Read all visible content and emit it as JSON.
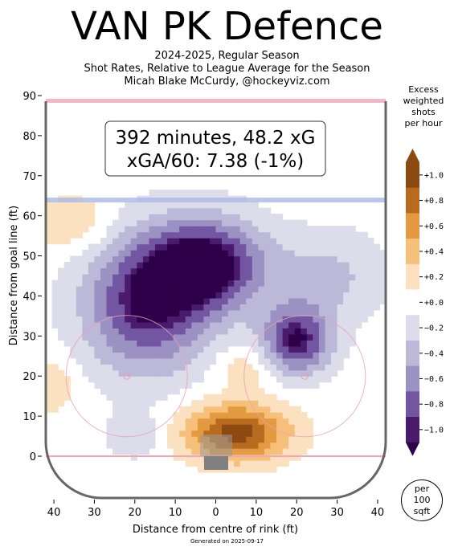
{
  "title": "VAN PK Defence",
  "subtitle": [
    "2024-2025, Regular Season",
    "Shot Rates, Relative to League Average for the Season",
    "Micah Blake McCurdy, @hockeyviz.com"
  ],
  "annotation": [
    "392 minutes, 48.2 xG",
    "xGA/60: 7.38 (-1%)"
  ],
  "generated": "Generated on 2025-09-17",
  "colorbar": {
    "title": [
      "Excess",
      "weighted",
      "shots",
      "per hour"
    ],
    "ticks": [
      "+1.0",
      "+0.8",
      "+0.6",
      "+0.4",
      "+0.2",
      "+0.0",
      "−0.2",
      "−0.4",
      "−0.6",
      "−0.8",
      "−1.0"
    ],
    "colors": [
      "#8c4a10",
      "#b86a1f",
      "#e39a40",
      "#f6c07a",
      "#fbe1c0",
      "#ffffff",
      "#dcdcea",
      "#bcb9d8",
      "#9b91c3",
      "#7356a2",
      "#4a1a6d",
      "#2d0049"
    ]
  },
  "unit_badge": [
    "per",
    "100",
    "sqft"
  ],
  "chart_data": {
    "type": "heatmap",
    "xlabel": "Distance from centre of rink (ft)",
    "ylabel": "Distance from goal line (ft)",
    "xlim": [
      -42,
      42
    ],
    "ylim": [
      -10,
      90
    ],
    "xticks": [
      -40,
      -30,
      -20,
      -10,
      0,
      10,
      20,
      30,
      40
    ],
    "xtick_labels": [
      "40",
      "30",
      "20",
      "10",
      "0",
      "10",
      "20",
      "30",
      "40"
    ],
    "yticks": [
      0,
      10,
      20,
      30,
      40,
      50,
      60,
      70,
      80,
      90
    ],
    "blobs": [
      {
        "x": -17,
        "y": 38,
        "sx": 11,
        "sy": 12,
        "v": -1.0
      },
      {
        "x": -2,
        "y": 48,
        "sx": 10,
        "sy": 8,
        "v": -1.1
      },
      {
        "x": 20,
        "y": 29,
        "sx": 6,
        "sy": 6,
        "v": -1.0
      },
      {
        "x": 5,
        "y": 6,
        "sx": 9,
        "sy": 5,
        "v": 1.0
      },
      {
        "x": -35,
        "y": 58,
        "sx": 7,
        "sy": 5,
        "v": 0.3
      },
      {
        "x": -40,
        "y": 18,
        "sx": 4,
        "sy": 5,
        "v": 0.25
      },
      {
        "x": 7,
        "y": 22,
        "sx": 5,
        "sy": 4,
        "v": 0.25
      },
      {
        "x": -20,
        "y": 5,
        "sx": 5,
        "sy": 4,
        "v": -0.25
      },
      {
        "x": 28,
        "y": 45,
        "sx": 10,
        "sy": 8,
        "v": -0.35
      }
    ]
  }
}
